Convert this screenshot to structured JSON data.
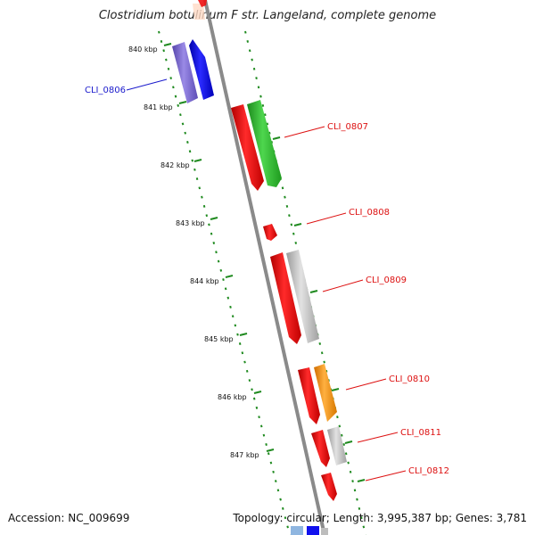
{
  "title": "Clostridium botulinum F str. Langeland, complete genome",
  "accession": "Accession: NC_009699",
  "summary": "Topology: circular; Length: 3,995,387 bp; Genes: 3,781",
  "scale_ticks": [
    "840 kbp",
    "841 kbp",
    "842 kbp",
    "843 kbp",
    "844 kbp",
    "845 kbp",
    "846 kbp",
    "847 kbp"
  ],
  "gene_labels": [
    {
      "text": "CLI_0806",
      "color": "#1a1acc"
    },
    {
      "text": "CLI_0807",
      "color": "#dd1111"
    },
    {
      "text": "CLI_0808",
      "color": "#dd1111"
    },
    {
      "text": "CLI_0809",
      "color": "#dd1111"
    },
    {
      "text": "CLI_0810",
      "color": "#dd1111"
    },
    {
      "text": "CLI_0811",
      "color": "#dd1111"
    },
    {
      "text": "CLI_0812",
      "color": "#dd1111"
    }
  ],
  "colors": {
    "backbone": "#8a8a8a",
    "tick": "#1f8a1f",
    "red": "#ee1111",
    "green": "#33bb33",
    "blue": "#1111ee",
    "purple": "#7a6ad6",
    "grey": "#bdbdbd",
    "orange": "#ff9900"
  }
}
